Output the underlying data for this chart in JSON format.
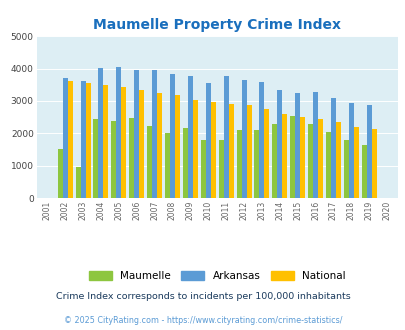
{
  "title": "Maumelle Property Crime Index",
  "years": [
    2001,
    2002,
    2003,
    2004,
    2005,
    2006,
    2007,
    2008,
    2009,
    2010,
    2011,
    2012,
    2013,
    2014,
    2015,
    2016,
    2017,
    2018,
    2019,
    2020
  ],
  "maumelle": [
    0,
    1500,
    950,
    2430,
    2380,
    2470,
    2220,
    2000,
    2170,
    1800,
    1800,
    2100,
    2100,
    2280,
    2550,
    2280,
    2050,
    1800,
    1650,
    0
  ],
  "arkansas": [
    0,
    3700,
    3620,
    4020,
    4060,
    3970,
    3970,
    3840,
    3770,
    3560,
    3770,
    3660,
    3580,
    3350,
    3250,
    3280,
    3100,
    2950,
    2870,
    0
  ],
  "national": [
    0,
    3620,
    3570,
    3490,
    3430,
    3330,
    3240,
    3200,
    3030,
    2960,
    2920,
    2880,
    2740,
    2610,
    2500,
    2450,
    2360,
    2210,
    2130,
    0
  ],
  "maumelle_color": "#8dc63f",
  "arkansas_color": "#5b9bd5",
  "national_color": "#ffc000",
  "bg_color": "#ddeef4",
  "ylim": [
    0,
    5000
  ],
  "yticks": [
    0,
    1000,
    2000,
    3000,
    4000,
    5000
  ],
  "bar_width": 0.28,
  "footnote1": "Crime Index corresponds to incidents per 100,000 inhabitants",
  "footnote2": "© 2025 CityRating.com - https://www.cityrating.com/crime-statistics/",
  "title_color": "#1a6fbd",
  "footnote1_color": "#1a3a5c",
  "footnote2_color": "#5b9bd5"
}
